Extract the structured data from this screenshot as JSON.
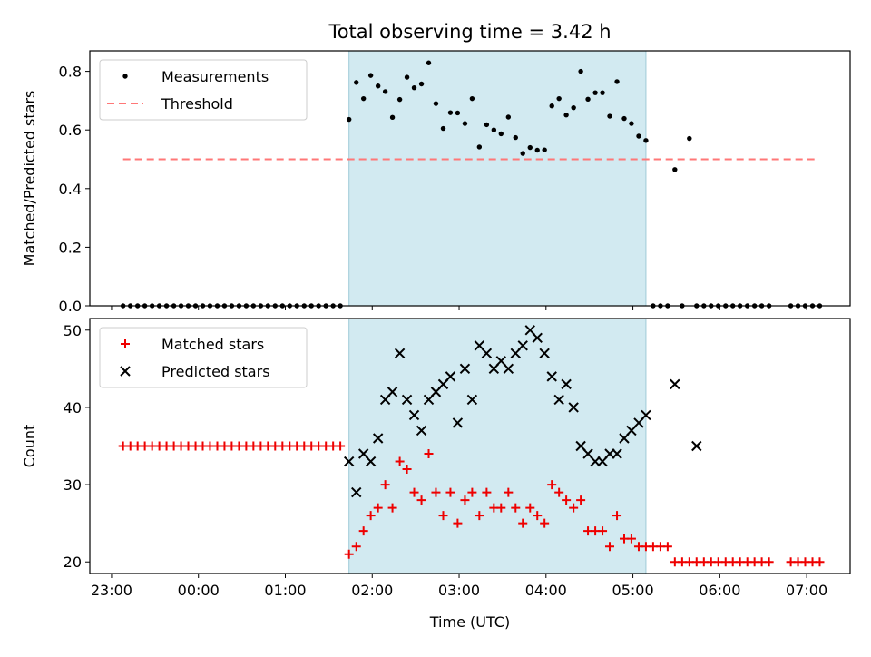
{
  "chart_data": {
    "type": "scatter",
    "title": "Total observing time = 3.42 h",
    "xlabel": "Time (UTC)",
    "x_tick_labels": [
      "23:00",
      "00:00",
      "01:00",
      "02:00",
      "03:00",
      "04:00",
      "05:00",
      "06:00",
      "07:00"
    ],
    "x_tick_hours": [
      23,
      24,
      25,
      26,
      27,
      28,
      29,
      30,
      31
    ],
    "xlim_hours": [
      22.75,
      31.5
    ],
    "observing_window_hours": [
      25.733,
      29.15
    ],
    "window_color": "#add8e6",
    "panels": [
      {
        "ylabel": "Matched/Predicted stars",
        "ylim": [
          0,
          0.87
        ],
        "y_ticks": [
          0.0,
          0.2,
          0.4,
          0.6,
          0.8
        ],
        "y_tick_labels": [
          "0.0",
          "0.2",
          "0.4",
          "0.6",
          "0.8"
        ],
        "legend_position": "upper-left",
        "series": [
          {
            "name": "Measurements",
            "marker": "dot",
            "color": "#000000",
            "x_hours": [
              23.133,
              23.217,
              23.3,
              23.383,
              23.467,
              23.55,
              23.633,
              23.717,
              23.8,
              23.883,
              23.967,
              24.05,
              24.133,
              24.217,
              24.3,
              24.383,
              24.467,
              24.55,
              24.633,
              24.717,
              24.8,
              24.883,
              24.967,
              25.05,
              25.133,
              25.217,
              25.3,
              25.383,
              25.467,
              25.55,
              25.633,
              25.733,
              25.817,
              25.9,
              25.983,
              26.067,
              26.15,
              26.233,
              26.317,
              26.4,
              26.483,
              26.567,
              26.65,
              26.733,
              26.817,
              26.9,
              26.983,
              27.067,
              27.15,
              27.233,
              27.317,
              27.4,
              27.483,
              27.567,
              27.65,
              27.733,
              27.817,
              27.9,
              27.983,
              28.067,
              28.15,
              28.233,
              28.317,
              28.4,
              28.483,
              28.567,
              28.65,
              28.733,
              28.817,
              28.9,
              28.983,
              29.067,
              29.15,
              29.233,
              29.317,
              29.4,
              29.483,
              29.567,
              29.65,
              29.733,
              29.817,
              29.9,
              29.983,
              30.067,
              30.15,
              30.233,
              30.317,
              30.4,
              30.483,
              30.567,
              30.817,
              30.9,
              30.983,
              31.067,
              31.15
            ],
            "y": [
              0,
              0,
              0,
              0,
              0,
              0,
              0,
              0,
              0,
              0,
              0,
              0,
              0,
              0,
              0,
              0,
              0,
              0,
              0,
              0,
              0,
              0,
              0,
              0,
              0,
              0,
              0,
              0,
              0,
              0,
              0,
              0.636,
              0.762,
              0.707,
              0.786,
              0.75,
              0.731,
              0.643,
              0.704,
              0.78,
              0.744,
              0.757,
              0.829,
              0.69,
              0.605,
              0.659,
              0.658,
              0.622,
              0.707,
              0.542,
              0.618,
              0.6,
              0.587,
              0.644,
              0.574,
              0.52,
              0.54,
              0.531,
              0.532,
              0.682,
              0.707,
              0.651,
              0.676,
              0.8,
              0.705,
              0.727,
              0.727,
              0.647,
              0.765,
              0.639,
              0.622,
              0.579,
              0.564,
              0,
              0,
              0,
              0.465,
              0,
              0.571,
              0,
              0,
              0,
              0,
              0,
              0,
              0,
              0,
              0,
              0,
              0,
              0,
              0,
              0,
              0,
              0
            ]
          },
          {
            "name": "Threshold",
            "marker": "dashed-line",
            "color": "#ff7777",
            "x_hours": [
              23.133,
              31.1
            ],
            "y": [
              0.5,
              0.5
            ]
          }
        ]
      },
      {
        "ylabel": "Count",
        "ylim": [
          18.5,
          51.5
        ],
        "y_ticks": [
          20,
          30,
          40,
          50
        ],
        "y_tick_labels": [
          "20",
          "30",
          "40",
          "50"
        ],
        "legend_position": "upper-left",
        "series": [
          {
            "name": "Matched stars",
            "marker": "plus",
            "color": "#ee0000",
            "x_hours": [
              23.133,
              23.217,
              23.3,
              23.383,
              23.467,
              23.55,
              23.633,
              23.717,
              23.8,
              23.883,
              23.967,
              24.05,
              24.133,
              24.217,
              24.3,
              24.383,
              24.467,
              24.55,
              24.633,
              24.717,
              24.8,
              24.883,
              24.967,
              25.05,
              25.133,
              25.217,
              25.3,
              25.383,
              25.467,
              25.55,
              25.633,
              25.733,
              25.817,
              25.9,
              25.983,
              26.067,
              26.15,
              26.233,
              26.317,
              26.4,
              26.483,
              26.567,
              26.65,
              26.733,
              26.817,
              26.9,
              26.983,
              27.067,
              27.15,
              27.233,
              27.317,
              27.4,
              27.483,
              27.567,
              27.65,
              27.733,
              27.817,
              27.9,
              27.983,
              28.067,
              28.15,
              28.233,
              28.317,
              28.4,
              28.483,
              28.567,
              28.65,
              28.733,
              28.817,
              28.9,
              28.983,
              29.067,
              29.15,
              29.233,
              29.317,
              29.4,
              29.483,
              29.567,
              29.65,
              29.733,
              29.817,
              29.9,
              29.983,
              30.067,
              30.15,
              30.233,
              30.317,
              30.4,
              30.483,
              30.567,
              30.817,
              30.9,
              30.983,
              31.067,
              31.15
            ],
            "y": [
              35,
              35,
              35,
              35,
              35,
              35,
              35,
              35,
              35,
              35,
              35,
              35,
              35,
              35,
              35,
              35,
              35,
              35,
              35,
              35,
              35,
              35,
              35,
              35,
              35,
              35,
              35,
              35,
              35,
              35,
              35,
              21,
              22,
              24,
              26,
              27,
              30,
              27,
              33,
              32,
              29,
              28,
              34,
              29,
              26,
              29,
              25,
              28,
              29,
              26,
              29,
              27,
              27,
              29,
              27,
              25,
              27,
              26,
              25,
              30,
              29,
              28,
              27,
              28,
              24,
              24,
              24,
              22,
              26,
              23,
              23,
              22,
              22,
              22,
              22,
              22,
              20,
              20,
              20,
              20,
              20,
              20,
              20,
              20,
              20,
              20,
              20,
              20,
              20,
              20,
              20,
              20,
              20,
              20,
              20
            ]
          },
          {
            "name": "Predicted stars",
            "marker": "x",
            "color": "#000000",
            "x_hours": [
              25.733,
              25.817,
              25.9,
              25.983,
              26.067,
              26.15,
              26.233,
              26.317,
              26.4,
              26.483,
              26.567,
              26.65,
              26.733,
              26.817,
              26.9,
              26.983,
              27.067,
              27.15,
              27.233,
              27.317,
              27.4,
              27.483,
              27.567,
              27.65,
              27.733,
              27.817,
              27.9,
              27.983,
              28.067,
              28.15,
              28.233,
              28.317,
              28.4,
              28.483,
              28.567,
              28.65,
              28.733,
              28.817,
              28.9,
              28.983,
              29.067,
              29.15,
              29.483,
              29.733
            ],
            "y": [
              33,
              29,
              34,
              33,
              36,
              41,
              42,
              47,
              41,
              39,
              37,
              41,
              42,
              43,
              44,
              38,
              45,
              41,
              48,
              47,
              45,
              46,
              45,
              47,
              48,
              50,
              49,
              47,
              44,
              41,
              43,
              40,
              35,
              34,
              33,
              33,
              34,
              34,
              36,
              37,
              38,
              39,
              43,
              35
            ]
          }
        ]
      }
    ]
  }
}
